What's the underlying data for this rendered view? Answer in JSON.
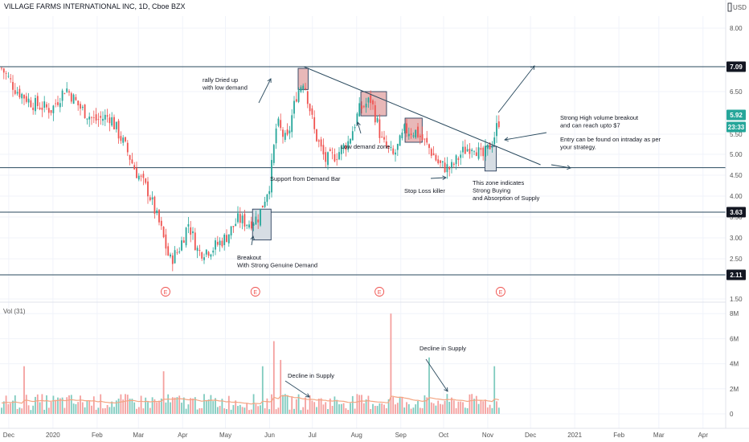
{
  "header": {
    "title": "VILLAGE FARMS INTERNATIONAL INC, 1D, Cboe BZX",
    "currency": "USD"
  },
  "chart_data": [
    {
      "type": "candlestick",
      "title": "VILLAGE FARMS INTERNATIONAL INC, 1D, Cboe BZX",
      "y_unit": "USD",
      "x_ticks": [
        "Dec",
        "2020",
        "Feb",
        "Mar",
        "Apr",
        "May",
        "Jun",
        "Jul",
        "Aug",
        "Sep",
        "Oct",
        "Nov",
        "Dec",
        "2021",
        "Feb",
        "Mar",
        "Apr"
      ],
      "y_ticks": [
        "1.50",
        "2.50",
        "3.00",
        "3.50",
        "4.00",
        "4.50",
        "5.00",
        "5.50",
        "6.50",
        "8.00"
      ],
      "ylim": [
        1.5,
        8.3
      ],
      "price_path": [
        {
          "date": "2019-11-26",
          "price": 7.05
        },
        {
          "date": "2019-12-06",
          "price": 6.55
        },
        {
          "date": "2019-12-18",
          "price": 6.2
        },
        {
          "date": "2019-12-31",
          "price": 6.05
        },
        {
          "date": "2020-01-10",
          "price": 6.6
        },
        {
          "date": "2020-01-20",
          "price": 6.1
        },
        {
          "date": "2020-01-30",
          "price": 5.8
        },
        {
          "date": "2020-02-10",
          "price": 5.9
        },
        {
          "date": "2020-02-20",
          "price": 5.25
        },
        {
          "date": "2020-02-28",
          "price": 4.6
        },
        {
          "date": "2020-03-08",
          "price": 4.1
        },
        {
          "date": "2020-03-16",
          "price": 3.3
        },
        {
          "date": "2020-03-23",
          "price": 2.45
        },
        {
          "date": "2020-03-29",
          "price": 2.7
        },
        {
          "date": "2020-04-05",
          "price": 3.35
        },
        {
          "date": "2020-04-12",
          "price": 2.65
        },
        {
          "date": "2020-04-22",
          "price": 2.75
        },
        {
          "date": "2020-05-01",
          "price": 3.0
        },
        {
          "date": "2020-05-10",
          "price": 3.45
        },
        {
          "date": "2020-05-17",
          "price": 3.35
        },
        {
          "date": "2020-05-24",
          "price": 3.5
        },
        {
          "date": "2020-06-01",
          "price": 4.3
        },
        {
          "date": "2020-06-06",
          "price": 5.75
        },
        {
          "date": "2020-06-13",
          "price": 5.3
        },
        {
          "date": "2020-06-20",
          "price": 6.45
        },
        {
          "date": "2020-06-25",
          "price": 6.8
        },
        {
          "date": "2020-07-02",
          "price": 5.6
        },
        {
          "date": "2020-07-10",
          "price": 4.85
        },
        {
          "date": "2020-07-18",
          "price": 5.0
        },
        {
          "date": "2020-07-26",
          "price": 5.3
        },
        {
          "date": "2020-08-03",
          "price": 6.05
        },
        {
          "date": "2020-08-11",
          "price": 6.3
        },
        {
          "date": "2020-08-19",
          "price": 5.3
        },
        {
          "date": "2020-08-27",
          "price": 4.95
        },
        {
          "date": "2020-09-04",
          "price": 5.6
        },
        {
          "date": "2020-09-12",
          "price": 5.55
        },
        {
          "date": "2020-09-20",
          "price": 5.2
        },
        {
          "date": "2020-09-28",
          "price": 4.75
        },
        {
          "date": "2020-10-06",
          "price": 4.65
        },
        {
          "date": "2020-10-14",
          "price": 5.05
        },
        {
          "date": "2020-10-22",
          "price": 5.25
        },
        {
          "date": "2020-10-28",
          "price": 4.9
        },
        {
          "date": "2020-11-04",
          "price": 5.3
        },
        {
          "date": "2020-11-10",
          "price": 5.92
        }
      ],
      "horizontal_levels": [
        7.09,
        4.68,
        3.63,
        2.11
      ],
      "price_badges": [
        {
          "label": "7.09",
          "value": 7.09,
          "color": "#131722"
        },
        {
          "label": "5.92",
          "value": 5.92,
          "color": "#26a69a"
        },
        {
          "label": "23:33",
          "value": 5.69,
          "color": "#26a69a"
        },
        {
          "label": "3.63",
          "value": 3.63,
          "color": "#131722"
        },
        {
          "label": "2.11",
          "value": 2.11,
          "color": "#131722"
        }
      ],
      "trendline": [
        {
          "date": "2020-06-25",
          "price": 7.09
        },
        {
          "date": "2020-12-08",
          "price": 4.75
        }
      ],
      "demand_boxes": [
        {
          "from": "2020-05-20",
          "to": "2020-06-02",
          "low": 2.95,
          "high": 3.7,
          "fill": "#d6dde4"
        },
        {
          "from": "2020-06-21",
          "to": "2020-06-28",
          "low": 6.55,
          "high": 7.05,
          "fill": "#e8b8b8"
        },
        {
          "from": "2020-08-04",
          "to": "2020-08-22",
          "low": 5.9,
          "high": 6.5,
          "fill": "#e8b8b8"
        },
        {
          "from": "2020-09-04",
          "to": "2020-09-16",
          "low": 5.3,
          "high": 5.85,
          "fill": "#e8b8b8"
        },
        {
          "from": "2020-10-30",
          "to": "2020-11-07",
          "low": 4.6,
          "high": 5.2,
          "fill": "#d6dde4"
        }
      ],
      "earnings_markers": [
        {
          "date": "2020-03-20",
          "label": "E"
        },
        {
          "date": "2020-05-22",
          "label": "E"
        },
        {
          "date": "2020-08-17",
          "label": "E"
        },
        {
          "date": "2020-11-10",
          "label": "E"
        }
      ],
      "annotations": [
        {
          "lines": [
            "rally Dried up",
            "with low demand"
          ]
        },
        {
          "lines": [
            "Low demand zone"
          ]
        },
        {
          "lines": [
            "Support from Demand Bar"
          ]
        },
        {
          "lines": [
            "Stop Loss killer"
          ]
        },
        {
          "lines": [
            "This zone indicates",
            "Strong Buying",
            "and Absorption of Supply"
          ]
        },
        {
          "lines": [
            "Strong High volume breakout",
            "and can reach upto $7"
          ]
        },
        {
          "lines": [
            "Entry can be found on intraday as per",
            "your strategy."
          ]
        },
        {
          "lines": [
            "Breakout",
            "With Strong Genuine Demand"
          ]
        }
      ]
    },
    {
      "type": "bar",
      "title": "Vol (31)",
      "y_ticks": [
        "0",
        "2M",
        "4M",
        "6M",
        "8M"
      ],
      "ylim": [
        0,
        8500000
      ],
      "spikes": [
        {
          "date": "2019-12-12",
          "value": 3800000
        },
        {
          "date": "2020-03-18",
          "value": 3400000
        },
        {
          "date": "2020-05-27",
          "value": 3800000
        },
        {
          "date": "2020-06-04",
          "value": 5800000
        },
        {
          "date": "2020-06-08",
          "value": 4300000
        },
        {
          "date": "2020-08-25",
          "value": 8000000
        },
        {
          "date": "2020-09-21",
          "value": 4500000
        },
        {
          "date": "2020-11-06",
          "value": 3800000
        },
        {
          "date": "2020-11-10",
          "value": 3300000
        }
      ],
      "annotations": [
        {
          "lines": [
            "Decline in Supply"
          ]
        },
        {
          "lines": [
            "Decline in Supply"
          ]
        }
      ]
    }
  ]
}
